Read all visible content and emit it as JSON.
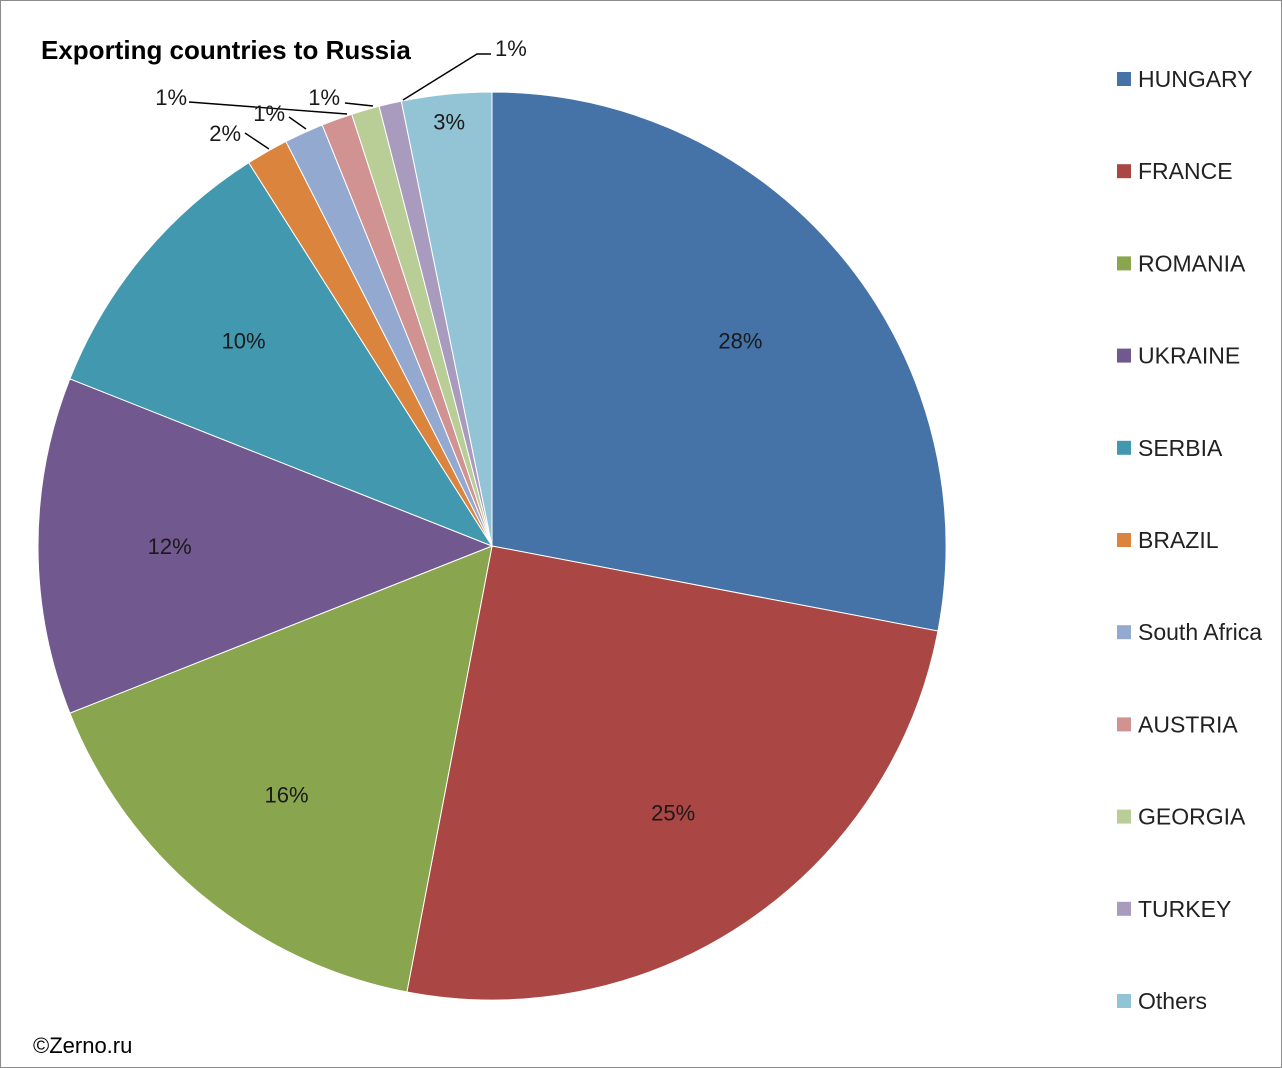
{
  "chart_data": {
    "type": "pie",
    "title": "Exporting countries to Russia",
    "legend_position": "right",
    "slices": [
      {
        "name": "HUNGARY",
        "value": 28,
        "label": "28%",
        "color": "#4572A7"
      },
      {
        "name": "FRANCE",
        "value": 25,
        "label": "25%",
        "color": "#AA4643"
      },
      {
        "name": "ROMANIA",
        "value": 16,
        "label": "16%",
        "color": "#89A54E"
      },
      {
        "name": "UKRAINE",
        "value": 12,
        "label": "12%",
        "color": "#71588F"
      },
      {
        "name": "SERBIA",
        "value": 10,
        "label": "10%",
        "color": "#4198AF"
      },
      {
        "name": "BRAZIL",
        "value": 1.5,
        "label": "2%",
        "color": "#DB843D"
      },
      {
        "name": "South Africa",
        "value": 1.4,
        "label": "1%",
        "color": "#93A9CF"
      },
      {
        "name": "AUSTRIA",
        "value": 1.1,
        "label": "1%",
        "color": "#D19392"
      },
      {
        "name": "GEORGIA",
        "value": 1.0,
        "label": "1%",
        "color": "#B9CD96"
      },
      {
        "name": "TURKEY",
        "value": 0.8,
        "label": "1%",
        "color": "#A99BBD"
      },
      {
        "name": "Others",
        "value": 3.2,
        "label": "3%",
        "color": "#92C4D6"
      }
    ]
  },
  "footer": {
    "copyright": "©Zerno.ru"
  }
}
